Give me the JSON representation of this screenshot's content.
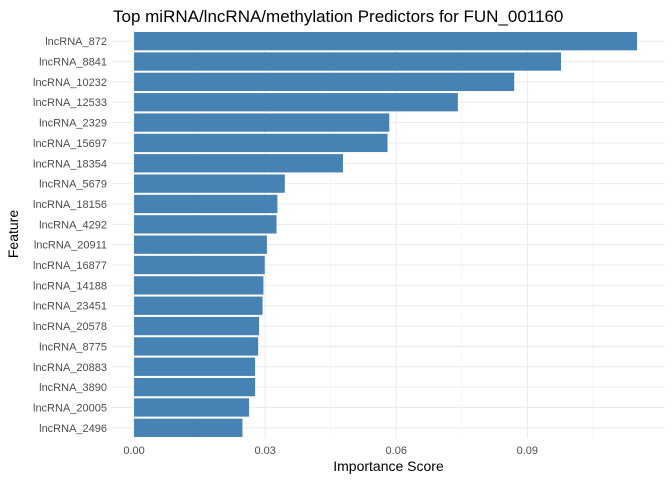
{
  "chart_data": {
    "type": "bar",
    "orientation": "horizontal",
    "title": "Top miRNA/lncRNA/methylation Predictors for FUN_001160",
    "xlabel": "Importance Score",
    "ylabel": "Feature",
    "xlim": [
      -0.00505,
      0.1215
    ],
    "x_ticks": [
      0.0,
      0.03,
      0.06,
      0.09
    ],
    "x_tick_labels": [
      "0.00",
      "0.03",
      "0.06",
      "0.09"
    ],
    "grid": true,
    "legend": "none",
    "bar_color": "#4682B4",
    "categories": [
      "lncRNA_872",
      "lncRNA_8841",
      "lncRNA_10232",
      "lncRNA_12533",
      "lncRNA_2329",
      "lncRNA_15697",
      "lncRNA_18354",
      "lncRNA_5679",
      "lncRNA_18156",
      "lncRNA_4292",
      "lncRNA_20911",
      "lncRNA_16877",
      "lncRNA_14188",
      "lncRNA_23451",
      "lncRNA_20578",
      "lncRNA_8775",
      "lncRNA_20883",
      "lncRNA_3890",
      "lncRNA_20005",
      "lncRNA_2496"
    ],
    "values": [
      0.1151,
      0.0977,
      0.087,
      0.0741,
      0.0584,
      0.058,
      0.0478,
      0.0345,
      0.0328,
      0.0326,
      0.0304,
      0.0299,
      0.0296,
      0.0294,
      0.0286,
      0.0284,
      0.0277,
      0.0277,
      0.0263,
      0.0248
    ]
  }
}
